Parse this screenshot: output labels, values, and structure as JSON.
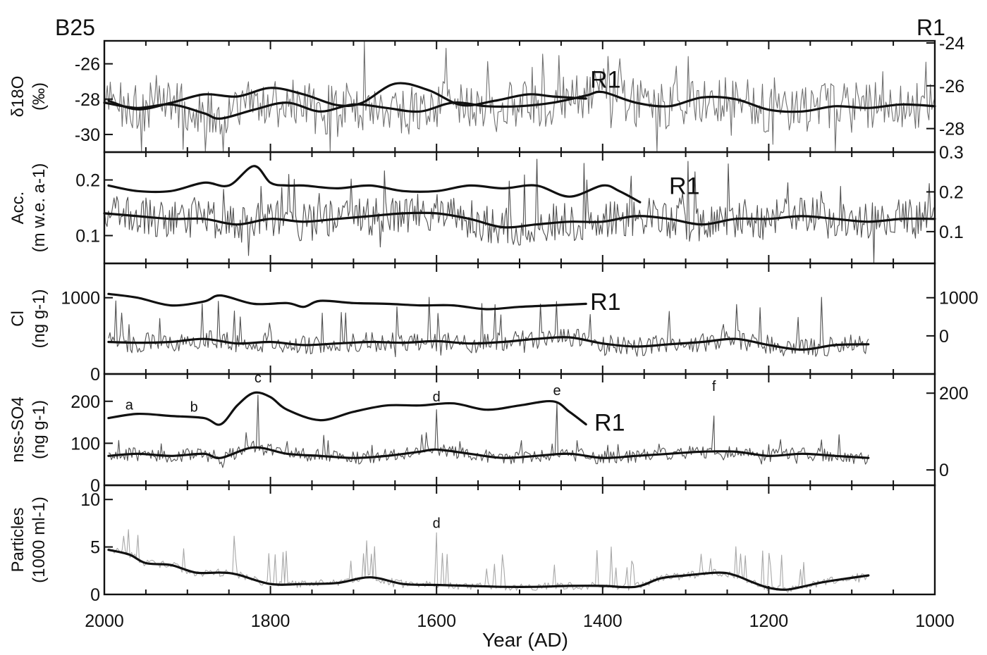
{
  "figure": {
    "left_label": "B25",
    "right_label": "R1"
  },
  "chart_data": {
    "type": "line",
    "xlabel": "Year  (AD)",
    "xlim": [
      2000,
      1000
    ],
    "xticks": [
      2000,
      1800,
      1600,
      1400,
      1200,
      1000
    ],
    "xtick_labels": [
      "2000",
      "1800",
      "1600",
      "1400",
      "1200",
      "1000"
    ],
    "panels": [
      {
        "id": "d18o",
        "ylabel_line1": "δ18O",
        "ylabel_line2": "(‰)",
        "ylim": [
          -31,
          -24.7
        ],
        "yticks": [
          -26,
          -28,
          -30
        ],
        "ytick_labels": [
          "-26",
          "-28",
          "-30"
        ],
        "right_ylim": [
          -29.1,
          -23.9
        ],
        "right_yticks": [
          -24,
          -26,
          -28
        ],
        "right_ytick_labels": [
          "-24",
          "-26",
          "-28"
        ],
        "raw_color": "#707070",
        "raw": {
          "x_start": 2000,
          "x_end": 1000,
          "n": 560,
          "base": -28.5,
          "noise": 1.4,
          "spike_up": 2.8,
          "spike_down": -2.8,
          "spike_rate": 0.06
        },
        "series": [
          {
            "name": "R1",
            "axis": "right",
            "x": [
              1995,
              1960,
              1920,
              1880,
              1840,
              1800,
              1760,
              1720,
              1690,
              1650,
              1610,
              1570,
              1530,
              1490,
              1460,
              1420
            ],
            "y": [
              -26.7,
              -27.1,
              -26.8,
              -26.4,
              -26.5,
              -26.1,
              -26.4,
              -26.9,
              -26.8,
              -25.9,
              -26.2,
              -26.9,
              -26.7,
              -26.4,
              -26.5,
              -26.6
            ]
          },
          {
            "name": "",
            "axis": "left",
            "x": [
              2000,
              1960,
              1920,
              1880,
              1860,
              1820,
              1780,
              1740,
              1700,
              1660,
              1620,
              1580,
              1540,
              1500,
              1460,
              1420,
              1400,
              1360,
              1320,
              1280,
              1240,
              1200,
              1160,
              1120,
              1080,
              1040,
              1000
            ],
            "y": [
              -28.2,
              -28.5,
              -28.3,
              -28.8,
              -29.1,
              -28.6,
              -28.2,
              -28.7,
              -28.3,
              -28.5,
              -28.7,
              -28.2,
              -28.4,
              -28.4,
              -28.2,
              -27.8,
              -27.6,
              -28.2,
              -28.4,
              -27.9,
              -28.0,
              -28.6,
              -28.7,
              -28.4,
              -28.5,
              -28.3,
              -28.4
            ]
          }
        ],
        "label": {
          "text": "R1",
          "x": 1415,
          "y": -25.7
        }
      },
      {
        "id": "acc",
        "ylabel_line1": "Acc.",
        "ylabel_line2": "(m w.e. a-1)",
        "ylim": [
          0.05,
          0.25
        ],
        "yticks": [
          0.2,
          0.1
        ],
        "ytick_labels": [
          "0.2",
          "0.1"
        ],
        "right_ylim": [
          0.02,
          0.3
        ],
        "right_yticks": [
          0.3,
          0.2,
          0.1
        ],
        "right_ytick_labels": [
          "0.3",
          "0.2",
          "0.1"
        ],
        "raw_color": "#505050",
        "raw": {
          "x_start": 2000,
          "x_end": 1000,
          "n": 600,
          "base": 0.135,
          "noise": 0.035,
          "spike_up": 0.1,
          "spike_down": -0.06,
          "spike_rate": 0.05
        },
        "series": [
          {
            "name": "R1",
            "axis": "left",
            "x": [
              1995,
              1960,
              1920,
              1880,
              1850,
              1820,
              1800,
              1780,
              1760,
              1720,
              1680,
              1640,
              1600,
              1560,
              1520,
              1480,
              1440,
              1400,
              1380,
              1355
            ],
            "y": [
              0.19,
              0.18,
              0.18,
              0.195,
              0.19,
              0.225,
              0.195,
              0.19,
              0.19,
              0.185,
              0.19,
              0.18,
              0.18,
              0.19,
              0.185,
              0.19,
              0.17,
              0.19,
              0.18,
              0.16
            ]
          },
          {
            "name": "",
            "axis": "left",
            "x": [
              2000,
              1960,
              1920,
              1880,
              1840,
              1800,
              1760,
              1720,
              1680,
              1640,
              1600,
              1560,
              1520,
              1480,
              1440,
              1400,
              1360,
              1320,
              1280,
              1240,
              1200,
              1160,
              1120,
              1080,
              1040,
              1000
            ],
            "y": [
              0.14,
              0.135,
              0.13,
              0.13,
              0.12,
              0.13,
              0.125,
              0.13,
              0.135,
              0.14,
              0.14,
              0.13,
              0.115,
              0.12,
              0.125,
              0.125,
              0.135,
              0.13,
              0.12,
              0.13,
              0.13,
              0.135,
              0.13,
              0.125,
              0.13,
              0.13
            ]
          }
        ],
        "label": {
          "text": "R1",
          "x": 1320,
          "y": 0.19
        }
      },
      {
        "id": "cl",
        "ylabel_line1": "Cl",
        "ylabel_line2": "(ng g-1)",
        "ylim": [
          0,
          1450
        ],
        "yticks": [
          1000,
          0
        ],
        "ytick_labels": [
          "1000",
          "0"
        ],
        "right_ylim": [
          -1000,
          1900
        ],
        "right_yticks": [
          1000,
          0
        ],
        "right_ytick_labels": [
          "1000",
          "0"
        ],
        "raw_color": "#505050",
        "raw": {
          "x_start": 1995,
          "x_end": 1080,
          "n": 520,
          "base": 380,
          "noise": 130,
          "spike_up": 600,
          "spike_down": -150,
          "spike_rate": 0.06
        },
        "series": [
          {
            "name": "R1",
            "axis": "left",
            "x": [
              1995,
              1960,
              1920,
              1880,
              1860,
              1820,
              1780,
              1760,
              1740,
              1700,
              1660,
              1620,
              1580,
              1540,
              1500,
              1460,
              1420
            ],
            "y": [
              1050,
              1000,
              900,
              950,
              1030,
              920,
              930,
              880,
              960,
              930,
              920,
              900,
              900,
              850,
              880,
              900,
              920
            ]
          },
          {
            "name": "",
            "axis": "left",
            "x": [
              1995,
              1960,
              1920,
              1880,
              1840,
              1800,
              1760,
              1720,
              1680,
              1640,
              1600,
              1560,
              1520,
              1480,
              1440,
              1400,
              1360,
              1320,
              1280,
              1240,
              1200,
              1160,
              1120,
              1080
            ],
            "y": [
              420,
              410,
              420,
              460,
              400,
              420,
              380,
              400,
              420,
              410,
              430,
              400,
              420,
              460,
              480,
              400,
              360,
              390,
              420,
              460,
              380,
              320,
              380,
              390
            ]
          }
        ],
        "label": {
          "text": "R1",
          "x": 1415,
          "y": 950
        }
      },
      {
        "id": "so4",
        "ylabel_line1": "nss-SO4",
        "ylabel_line2": "(ng g-1)",
        "ylim": [
          0,
          265
        ],
        "yticks": [
          200,
          100,
          0
        ],
        "ytick_labels": [
          "200",
          "100",
          "0"
        ],
        "right_ylim": [
          -40,
          250
        ],
        "right_yticks": [
          200,
          0
        ],
        "right_ytick_labels": [
          "200",
          "0"
        ],
        "raw_color": "#505050",
        "raw": {
          "x_start": 1995,
          "x_end": 1080,
          "n": 520,
          "base": 70,
          "noise": 16,
          "spike_up": 45,
          "spike_down": -20,
          "spike_rate": 0.05
        },
        "series": [
          {
            "name": "R1",
            "axis": "left",
            "x": [
              1995,
              1960,
              1920,
              1880,
              1860,
              1840,
              1820,
              1800,
              1780,
              1740,
              1700,
              1660,
              1620,
              1580,
              1540,
              1500,
              1460,
              1440,
              1420
            ],
            "y": [
              160,
              170,
              165,
              160,
              145,
              190,
              220,
              210,
              180,
              155,
              175,
              190,
              190,
              195,
              180,
              190,
              200,
              175,
              145
            ]
          },
          {
            "name": "",
            "axis": "left",
            "x": [
              1995,
              1960,
              1920,
              1880,
              1860,
              1820,
              1780,
              1740,
              1700,
              1660,
              1620,
              1600,
              1560,
              1520,
              1480,
              1440,
              1400,
              1360,
              1320,
              1280,
              1240,
              1200,
              1160,
              1120,
              1080
            ],
            "y": [
              70,
              75,
              70,
              75,
              65,
              90,
              75,
              70,
              65,
              70,
              80,
              85,
              75,
              65,
              70,
              75,
              65,
              70,
              75,
              80,
              80,
              70,
              75,
              70,
              65
            ]
          }
        ],
        "label": {
          "text": "R1",
          "x": 1410,
          "y": 150
        },
        "events": [
          {
            "text": "a",
            "x": 1970,
            "y": 180,
            "spike": false
          },
          {
            "text": "b",
            "x": 1892,
            "y": 175,
            "spike": false
          },
          {
            "text": "c",
            "x": 1815,
            "y": 245,
            "spike": true,
            "height": 215
          },
          {
            "text": "d",
            "x": 1600,
            "y": 200,
            "spike": true,
            "height": 180
          },
          {
            "text": "e",
            "x": 1455,
            "y": 215,
            "spike": true,
            "height": 195
          },
          {
            "text": "f",
            "x": 1266,
            "y": 225,
            "spike": true,
            "height": 165
          }
        ]
      },
      {
        "id": "particles",
        "ylabel_line1": "Particles",
        "ylabel_line2": "(1000 ml-1)",
        "ylim": [
          0,
          11.5
        ],
        "yticks": [
          10,
          5,
          0
        ],
        "ytick_labels": [
          "10",
          "5",
          "0"
        ],
        "raw_color": "#a8a8a8",
        "raw": {
          "x_start": 1990,
          "x_end": 1080,
          "n": 480,
          "base": 1.0,
          "noise": 0.4,
          "spike_up": 4,
          "spike_down": -0.3,
          "spike_rate": 0.06
        },
        "series": [
          {
            "name": "",
            "axis": "left",
            "x": [
              1995,
              1970,
              1950,
              1920,
              1890,
              1860,
              1840,
              1800,
              1760,
              1720,
              1680,
              1640,
              1600,
              1560,
              1520,
              1480,
              1440,
              1400,
              1360,
              1330,
              1300,
              1260,
              1240,
              1220,
              1200,
              1180,
              1160,
              1140,
              1120,
              1080
            ],
            "y": [
              4.7,
              4.2,
              3.3,
              3.1,
              2.3,
              2.3,
              2.1,
              1.1,
              1.1,
              1.2,
              1.8,
              1.1,
              1.0,
              0.9,
              0.8,
              0.8,
              0.9,
              0.9,
              0.8,
              1.7,
              2.0,
              2.3,
              2.0,
              1.3,
              0.7,
              0.5,
              0.8,
              1.2,
              1.5,
              2.0
            ]
          }
        ],
        "events": [
          {
            "text": "d",
            "x": 1600,
            "y": 7.0,
            "spike": true,
            "height": 6.5
          }
        ]
      }
    ]
  }
}
